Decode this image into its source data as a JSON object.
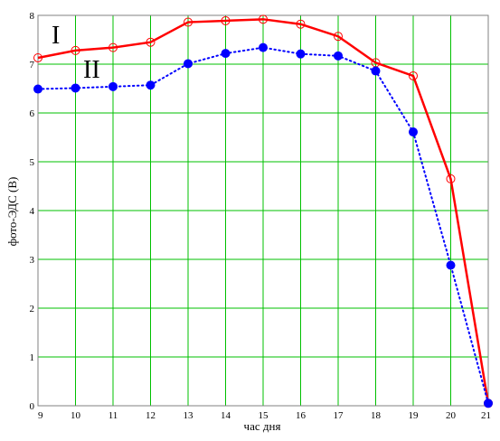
{
  "chart_data": {
    "type": "line",
    "xlabel": "час дня",
    "ylabel": "фото-ЭДС (В)",
    "xlim": [
      9,
      21
    ],
    "ylim": [
      0,
      8
    ],
    "x_ticks": [
      "9",
      "10",
      "11",
      "12",
      "13",
      "14",
      "15",
      "16",
      "17",
      "18",
      "19",
      "20",
      "21"
    ],
    "y_ticks": [
      "0",
      "1",
      "2",
      "3",
      "4",
      "5",
      "6",
      "7",
      "8"
    ],
    "grid": true,
    "colors": {
      "grid": "#00c000",
      "frame": "#808080",
      "series_I": "#ff0000",
      "series_II": "#0000ff"
    },
    "series": [
      {
        "name": "I",
        "style": "solid-open-circles",
        "x": [
          9,
          10,
          11,
          12,
          13,
          14,
          15,
          16,
          17,
          18,
          19,
          20,
          21
        ],
        "y": [
          7.13,
          7.28,
          7.34,
          7.45,
          7.86,
          7.89,
          7.92,
          7.82,
          7.57,
          7.03,
          6.76,
          4.65,
          0.05
        ]
      },
      {
        "name": "II",
        "style": "dotted-filled-circles",
        "x": [
          9,
          10,
          11,
          12,
          13,
          14,
          15,
          16,
          17,
          18,
          19,
          20,
          21
        ],
        "y": [
          6.49,
          6.51,
          6.54,
          6.57,
          7.01,
          7.22,
          7.34,
          7.21,
          7.17,
          6.86,
          5.61,
          2.88,
          0.05
        ]
      }
    ]
  }
}
